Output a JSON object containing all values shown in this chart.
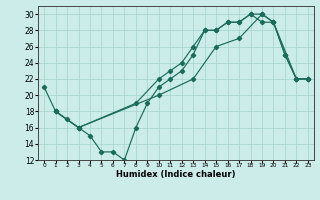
{
  "xlabel": "Humidex (Indice chaleur)",
  "bg_color": "#ccecea",
  "grid_color": "#aad8d4",
  "line_color": "#1a6b5a",
  "xlim": [
    -0.5,
    23.5
  ],
  "ylim": [
    12,
    31
  ],
  "yticks": [
    12,
    14,
    16,
    18,
    20,
    22,
    24,
    26,
    28,
    30
  ],
  "xticks": [
    0,
    1,
    2,
    3,
    4,
    5,
    6,
    7,
    8,
    9,
    10,
    11,
    12,
    13,
    14,
    15,
    16,
    17,
    18,
    19,
    20,
    21,
    22,
    23
  ],
  "line1_x": [
    0,
    1,
    2,
    3,
    4,
    5,
    6,
    7,
    8,
    9,
    10,
    11,
    12,
    13,
    14,
    15,
    16,
    17,
    18,
    19,
    20,
    21,
    22,
    23
  ],
  "line1_y": [
    21,
    18,
    17,
    16,
    15,
    13,
    13,
    12,
    16,
    19,
    21,
    22,
    23,
    25,
    28,
    28,
    29,
    29,
    30,
    30,
    29,
    25,
    22,
    22
  ],
  "line2_x": [
    1,
    3,
    8,
    10,
    11,
    12,
    13,
    14,
    15,
    16,
    17,
    18,
    19,
    20,
    21,
    22,
    23
  ],
  "line2_y": [
    18,
    16,
    19,
    22,
    23,
    24,
    26,
    28,
    28,
    29,
    29,
    30,
    29,
    29,
    25,
    22,
    22
  ],
  "line3_x": [
    1,
    3,
    10,
    13,
    15,
    17,
    19,
    20,
    22,
    23
  ],
  "line3_y": [
    18,
    16,
    20,
    22,
    26,
    27,
    30,
    29,
    22,
    22
  ]
}
